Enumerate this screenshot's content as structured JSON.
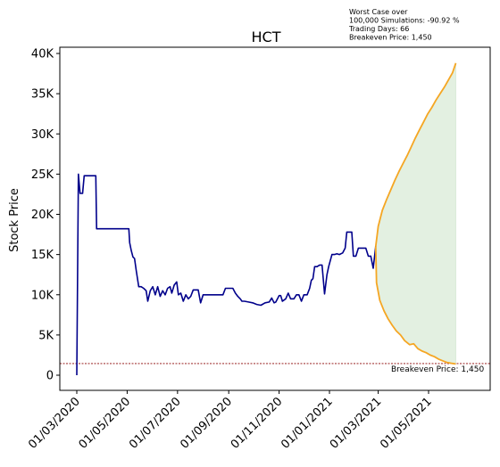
{
  "chart_data": {
    "type": "line",
    "title": "HCT",
    "ylabel": "Stock Price",
    "xlabel": "",
    "ylim": [
      -2000,
      41000
    ],
    "x_ticks": [
      "01/03/2020",
      "01/05/2020",
      "01/07/2020",
      "01/09/2020",
      "01/11/2020",
      "01/01/2021",
      "01/03/2021",
      "01/05/2021"
    ],
    "y_ticks": [
      "0",
      "5K",
      "10K",
      "15K",
      "20K",
      "25K",
      "30K",
      "35K",
      "40K"
    ],
    "y_tick_values": [
      0,
      5000,
      10000,
      15000,
      20000,
      25000,
      30000,
      35000,
      40000
    ],
    "annotation_lines": [
      "Worst Case over",
      "100,000 Simulations: -90.92 %",
      "Trading Days: 66",
      "Breakeven Price: 1,450"
    ],
    "breakeven_label": "Breakeven Price: 1,450",
    "breakeven_price": 1450,
    "colors": {
      "history": "#00008b",
      "simulation": "#f5a623",
      "fill": "#e3f0e1",
      "breakeven": "#8b0000"
    },
    "grid": false,
    "history": [
      [
        "2020-03-01",
        0
      ],
      [
        "2020-03-03",
        25000
      ],
      [
        "2020-03-05",
        22600
      ],
      [
        "2020-03-08",
        22600
      ],
      [
        "2020-03-10",
        24800
      ],
      [
        "2020-03-14",
        24800
      ],
      [
        "2020-03-24",
        24800
      ],
      [
        "2020-03-25",
        18200
      ],
      [
        "2020-04-20",
        18200
      ],
      [
        "2020-05-03",
        18200
      ],
      [
        "2020-05-04",
        16500
      ],
      [
        "2020-05-06",
        15500
      ],
      [
        "2020-05-08",
        14700
      ],
      [
        "2020-05-10",
        14500
      ],
      [
        "2020-05-12",
        13000
      ],
      [
        "2020-05-15",
        11000
      ],
      [
        "2020-05-18",
        11000
      ],
      [
        "2020-05-21",
        10800
      ],
      [
        "2020-05-24",
        10500
      ],
      [
        "2020-05-26",
        9200
      ],
      [
        "2020-05-29",
        10500
      ],
      [
        "2020-06-01",
        11000
      ],
      [
        "2020-06-04",
        10000
      ],
      [
        "2020-06-07",
        11000
      ],
      [
        "2020-06-10",
        9800
      ],
      [
        "2020-06-13",
        10500
      ],
      [
        "2020-06-16",
        10000
      ],
      [
        "2020-06-19",
        10800
      ],
      [
        "2020-06-22",
        11000
      ],
      [
        "2020-06-24",
        10200
      ],
      [
        "2020-06-27",
        11200
      ],
      [
        "2020-06-30",
        11600
      ],
      [
        "2020-07-02",
        10000
      ],
      [
        "2020-07-05",
        10200
      ],
      [
        "2020-07-08",
        9200
      ],
      [
        "2020-07-11",
        10000
      ],
      [
        "2020-07-14",
        9500
      ],
      [
        "2020-07-17",
        9800
      ],
      [
        "2020-07-20",
        10600
      ],
      [
        "2020-07-23",
        10600
      ],
      [
        "2020-07-26",
        10600
      ],
      [
        "2020-07-29",
        9000
      ],
      [
        "2020-08-01",
        10000
      ],
      [
        "2020-08-05",
        10000
      ],
      [
        "2020-08-10",
        10000
      ],
      [
        "2020-08-15",
        10000
      ],
      [
        "2020-08-20",
        10000
      ],
      [
        "2020-08-25",
        10000
      ],
      [
        "2020-08-28",
        10800
      ],
      [
        "2020-09-02",
        10800
      ],
      [
        "2020-09-06",
        10800
      ],
      [
        "2020-09-09",
        10200
      ],
      [
        "2020-09-12",
        9800
      ],
      [
        "2020-09-15",
        9500
      ],
      [
        "2020-09-17",
        9200
      ],
      [
        "2020-09-20",
        9200
      ],
      [
        "2020-09-25",
        9100
      ],
      [
        "2020-09-30",
        9000
      ],
      [
        "2020-10-05",
        8800
      ],
      [
        "2020-10-10",
        8700
      ],
      [
        "2020-10-15",
        9000
      ],
      [
        "2020-10-20",
        9100
      ],
      [
        "2020-10-23",
        9600
      ],
      [
        "2020-10-26",
        9000
      ],
      [
        "2020-10-28",
        9100
      ],
      [
        "2020-11-01",
        9900
      ],
      [
        "2020-11-03",
        9900
      ],
      [
        "2020-11-05",
        9200
      ],
      [
        "2020-11-09",
        9500
      ],
      [
        "2020-11-12",
        10200
      ],
      [
        "2020-11-15",
        9500
      ],
      [
        "2020-11-19",
        9500
      ],
      [
        "2020-11-22",
        10000
      ],
      [
        "2020-11-25",
        10000
      ],
      [
        "2020-11-28",
        9200
      ],
      [
        "2020-12-01",
        10000
      ],
      [
        "2020-12-05",
        10000
      ],
      [
        "2020-12-08",
        10800
      ],
      [
        "2020-12-10",
        11800
      ],
      [
        "2020-12-12",
        12000
      ],
      [
        "2020-12-14",
        13500
      ],
      [
        "2020-12-17",
        13500
      ],
      [
        "2020-12-20",
        13700
      ],
      [
        "2020-12-23",
        13700
      ],
      [
        "2020-12-26",
        10100
      ],
      [
        "2020-12-29",
        12500
      ],
      [
        "2020-12-31",
        13500
      ],
      [
        "2021-01-04",
        15000
      ],
      [
        "2021-01-07",
        15000
      ],
      [
        "2021-01-10",
        15100
      ],
      [
        "2021-01-13",
        15000
      ],
      [
        "2021-01-17",
        15200
      ],
      [
        "2021-01-20",
        15800
      ],
      [
        "2021-01-22",
        17800
      ],
      [
        "2021-01-25",
        17800
      ],
      [
        "2021-01-28",
        17800
      ],
      [
        "2021-01-30",
        14800
      ],
      [
        "2021-02-02",
        14800
      ],
      [
        "2021-02-05",
        15800
      ],
      [
        "2021-02-08",
        15800
      ],
      [
        "2021-02-11",
        15800
      ],
      [
        "2021-02-14",
        15800
      ],
      [
        "2021-02-17",
        14800
      ],
      [
        "2021-02-20",
        14800
      ],
      [
        "2021-02-23",
        13300
      ],
      [
        "2021-02-26",
        16000
      ]
    ],
    "sim_upper": [
      [
        "2021-02-26",
        16000
      ],
      [
        "2021-03-01",
        18500
      ],
      [
        "2021-03-06",
        20500
      ],
      [
        "2021-03-11",
        21800
      ],
      [
        "2021-03-16",
        23000
      ],
      [
        "2021-03-21",
        24200
      ],
      [
        "2021-03-26",
        25300
      ],
      [
        "2021-03-31",
        26300
      ],
      [
        "2021-04-05",
        27300
      ],
      [
        "2021-04-10",
        28400
      ],
      [
        "2021-04-15",
        29500
      ],
      [
        "2021-04-20",
        30500
      ],
      [
        "2021-04-25",
        31500
      ],
      [
        "2021-04-30",
        32500
      ],
      [
        "2021-05-05",
        33300
      ],
      [
        "2021-05-10",
        34200
      ],
      [
        "2021-05-15",
        35000
      ],
      [
        "2021-05-20",
        35800
      ],
      [
        "2021-05-25",
        36700
      ],
      [
        "2021-05-30",
        37600
      ],
      [
        "2021-06-03",
        38800
      ]
    ],
    "sim_lower": [
      [
        "2021-02-26",
        16000
      ],
      [
        "2021-02-27",
        11500
      ],
      [
        "2021-03-03",
        9300
      ],
      [
        "2021-03-08",
        8000
      ],
      [
        "2021-03-13",
        7000
      ],
      [
        "2021-03-18",
        6200
      ],
      [
        "2021-03-23",
        5500
      ],
      [
        "2021-03-28",
        5000
      ],
      [
        "2021-04-02",
        4300
      ],
      [
        "2021-04-08",
        3800
      ],
      [
        "2021-04-13",
        3900
      ],
      [
        "2021-04-18",
        3300
      ],
      [
        "2021-04-23",
        3000
      ],
      [
        "2021-04-28",
        2800
      ],
      [
        "2021-05-03",
        2500
      ],
      [
        "2021-05-08",
        2300
      ],
      [
        "2021-05-13",
        2000
      ],
      [
        "2021-05-18",
        1800
      ],
      [
        "2021-05-23",
        1600
      ],
      [
        "2021-05-28",
        1500
      ],
      [
        "2021-06-03",
        1400
      ]
    ]
  }
}
